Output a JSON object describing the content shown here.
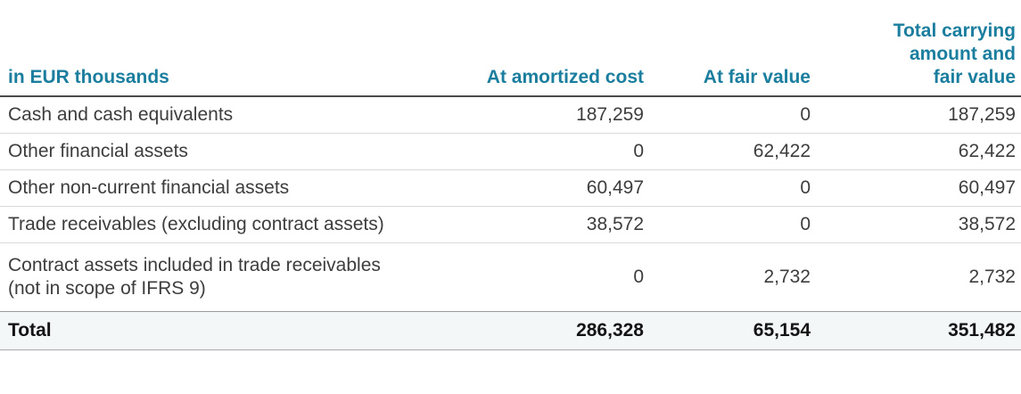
{
  "table": {
    "unit_label": "in EUR thousands",
    "columns": {
      "amortized_cost": "At amortized cost",
      "fair_value": "At fair value",
      "total_carrying": "Total carrying amount and fair value"
    },
    "rows": [
      {
        "label": "Cash and cash equivalents",
        "values": [
          "187,259",
          "0",
          "187,259"
        ]
      },
      {
        "label": "Other financial assets",
        "values": [
          "0",
          "62,422",
          "62,422"
        ]
      },
      {
        "label": "Other non-current financial assets",
        "values": [
          "60,497",
          "0",
          "60,497"
        ]
      },
      {
        "label": "Trade receivables (excluding contract assets)",
        "values": [
          "38,572",
          "0",
          "38,572"
        ]
      },
      {
        "label": "Contract assets included in trade receivables (not in scope of IFRS 9)",
        "values": [
          "0",
          "2,732",
          "2,732"
        ]
      }
    ],
    "total_row": {
      "label": "Total",
      "values": [
        "286,328",
        "65,154",
        "351,482"
      ]
    },
    "colors": {
      "accent_header_text": "#1b7e9e",
      "header_rule": "#4a4a4a",
      "row_rule": "#d9d9d9",
      "total_row_background": "#f4f7f8",
      "body_text": "#3d3d3d"
    }
  }
}
